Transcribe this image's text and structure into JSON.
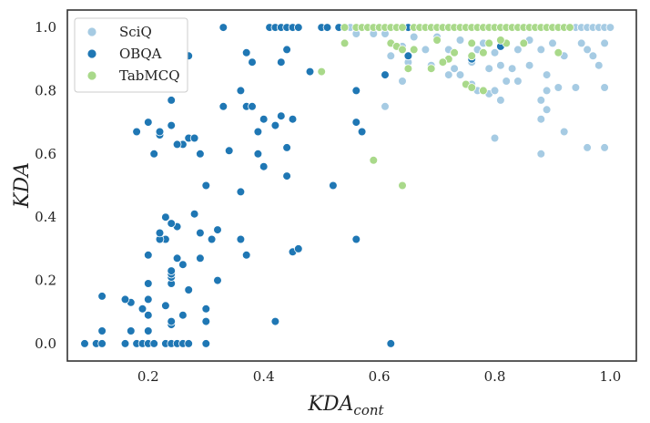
{
  "chart_data": {
    "type": "scatter",
    "xlabel_main": "KDA",
    "xlabel_sub": "cont",
    "ylabel": "KDA",
    "xlim": [
      0.06,
      1.045
    ],
    "ylim": [
      -0.055,
      1.055
    ],
    "xticks": [
      "0.2",
      "0.4",
      "0.6",
      "0.8",
      "1.0"
    ],
    "xtick_values": [
      0.2,
      0.4,
      0.6,
      0.8,
      1.0
    ],
    "yticks": [
      "0.0",
      "0.2",
      "0.4",
      "0.6",
      "0.8",
      "1.0"
    ],
    "ytick_values": [
      0.0,
      0.2,
      0.4,
      0.6,
      0.8,
      1.0
    ],
    "grid": false,
    "legend_position": "top-left",
    "series": [
      {
        "name": "SciQ",
        "color": "#a6cbe3",
        "points": [
          [
            0.53,
            1.0
          ],
          [
            0.55,
            1.0
          ],
          [
            0.57,
            1.0
          ],
          [
            0.58,
            1.0
          ],
          [
            0.6,
            1.0
          ],
          [
            0.62,
            1.0
          ],
          [
            0.64,
            1.0
          ],
          [
            0.65,
            1.0
          ],
          [
            0.67,
            1.0
          ],
          [
            0.69,
            1.0
          ],
          [
            0.71,
            1.0
          ],
          [
            0.73,
            1.0
          ],
          [
            0.75,
            1.0
          ],
          [
            0.77,
            1.0
          ],
          [
            0.79,
            1.0
          ],
          [
            0.81,
            1.0
          ],
          [
            0.83,
            1.0
          ],
          [
            0.85,
            1.0
          ],
          [
            0.87,
            1.0
          ],
          [
            0.89,
            1.0
          ],
          [
            0.91,
            1.0
          ],
          [
            0.93,
            1.0
          ],
          [
            0.94,
            1.0
          ],
          [
            0.95,
            1.0
          ],
          [
            0.96,
            1.0
          ],
          [
            0.97,
            1.0
          ],
          [
            0.98,
            1.0
          ],
          [
            0.99,
            1.0
          ],
          [
            1.0,
            1.0
          ],
          [
            0.56,
            0.98
          ],
          [
            0.59,
            0.98
          ],
          [
            0.61,
            0.98
          ],
          [
            0.66,
            0.97
          ],
          [
            0.7,
            0.97
          ],
          [
            0.74,
            0.96
          ],
          [
            0.78,
            0.95
          ],
          [
            0.82,
            0.95
          ],
          [
            0.86,
            0.96
          ],
          [
            0.9,
            0.95
          ],
          [
            0.95,
            0.95
          ],
          [
            0.99,
            0.95
          ],
          [
            0.64,
            0.94
          ],
          [
            0.68,
            0.93
          ],
          [
            0.72,
            0.93
          ],
          [
            0.77,
            0.93
          ],
          [
            0.8,
            0.92
          ],
          [
            0.84,
            0.93
          ],
          [
            0.88,
            0.93
          ],
          [
            0.92,
            0.91
          ],
          [
            0.96,
            0.93
          ],
          [
            0.62,
            0.91
          ],
          [
            0.65,
            0.89
          ],
          [
            0.69,
            0.88
          ],
          [
            0.73,
            0.87
          ],
          [
            0.76,
            0.89
          ],
          [
            0.79,
            0.87
          ],
          [
            0.81,
            0.88
          ],
          [
            0.83,
            0.87
          ],
          [
            0.86,
            0.88
          ],
          [
            0.89,
            0.85
          ],
          [
            0.64,
            0.83
          ],
          [
            0.72,
            0.85
          ],
          [
            0.74,
            0.85
          ],
          [
            0.76,
            0.82
          ],
          [
            0.77,
            0.8
          ],
          [
            0.78,
            0.8
          ],
          [
            0.79,
            0.79
          ],
          [
            0.8,
            0.8
          ],
          [
            0.82,
            0.83
          ],
          [
            0.84,
            0.83
          ],
          [
            0.88,
            0.77
          ],
          [
            0.89,
            0.8
          ],
          [
            0.91,
            0.81
          ],
          [
            0.94,
            0.81
          ],
          [
            0.61,
            0.75
          ],
          [
            0.81,
            0.77
          ],
          [
            0.88,
            0.71
          ],
          [
            0.89,
            0.74
          ],
          [
            0.92,
            0.67
          ],
          [
            0.8,
            0.65
          ],
          [
            0.88,
            0.6
          ],
          [
            0.96,
            0.62
          ],
          [
            0.99,
            0.62
          ],
          [
            0.98,
            0.88
          ],
          [
            0.99,
            0.81
          ],
          [
            0.97,
            0.91
          ]
        ]
      },
      {
        "name": "OBQA",
        "color": "#1f77b4",
        "points": [
          [
            0.09,
            0.0
          ],
          [
            0.11,
            0.0
          ],
          [
            0.12,
            0.0
          ],
          [
            0.16,
            0.0
          ],
          [
            0.18,
            0.0
          ],
          [
            0.19,
            0.0
          ],
          [
            0.2,
            0.0
          ],
          [
            0.21,
            0.0
          ],
          [
            0.23,
            0.0
          ],
          [
            0.24,
            0.0
          ],
          [
            0.25,
            0.0
          ],
          [
            0.26,
            0.0
          ],
          [
            0.27,
            0.0
          ],
          [
            0.3,
            0.0
          ],
          [
            0.62,
            0.0
          ],
          [
            0.12,
            0.04
          ],
          [
            0.17,
            0.04
          ],
          [
            0.2,
            0.04
          ],
          [
            0.24,
            0.06
          ],
          [
            0.24,
            0.07
          ],
          [
            0.3,
            0.07
          ],
          [
            0.42,
            0.07
          ],
          [
            0.2,
            0.09
          ],
          [
            0.26,
            0.09
          ],
          [
            0.19,
            0.11
          ],
          [
            0.23,
            0.12
          ],
          [
            0.17,
            0.13
          ],
          [
            0.12,
            0.15
          ],
          [
            0.16,
            0.14
          ],
          [
            0.2,
            0.14
          ],
          [
            0.3,
            0.11
          ],
          [
            0.27,
            0.17
          ],
          [
            0.24,
            0.19
          ],
          [
            0.2,
            0.19
          ],
          [
            0.32,
            0.2
          ],
          [
            0.24,
            0.21
          ],
          [
            0.24,
            0.22
          ],
          [
            0.24,
            0.23
          ],
          [
            0.26,
            0.25
          ],
          [
            0.25,
            0.27
          ],
          [
            0.29,
            0.27
          ],
          [
            0.2,
            0.28
          ],
          [
            0.37,
            0.28
          ],
          [
            0.45,
            0.29
          ],
          [
            0.46,
            0.3
          ],
          [
            0.23,
            0.33
          ],
          [
            0.22,
            0.33
          ],
          [
            0.31,
            0.33
          ],
          [
            0.36,
            0.33
          ],
          [
            0.56,
            0.33
          ],
          [
            0.29,
            0.35
          ],
          [
            0.22,
            0.35
          ],
          [
            0.25,
            0.37
          ],
          [
            0.24,
            0.38
          ],
          [
            0.32,
            0.36
          ],
          [
            0.23,
            0.4
          ],
          [
            0.28,
            0.41
          ],
          [
            0.36,
            0.48
          ],
          [
            0.3,
            0.5
          ],
          [
            0.52,
            0.5
          ],
          [
            0.29,
            0.6
          ],
          [
            0.21,
            0.6
          ],
          [
            0.26,
            0.63
          ],
          [
            0.25,
            0.63
          ],
          [
            0.27,
            0.65
          ],
          [
            0.28,
            0.65
          ],
          [
            0.22,
            0.66
          ],
          [
            0.22,
            0.67
          ],
          [
            0.18,
            0.67
          ],
          [
            0.34,
            0.61
          ],
          [
            0.39,
            0.6
          ],
          [
            0.4,
            0.56
          ],
          [
            0.44,
            0.53
          ],
          [
            0.44,
            0.62
          ],
          [
            0.2,
            0.7
          ],
          [
            0.24,
            0.69
          ],
          [
            0.39,
            0.67
          ],
          [
            0.42,
            0.69
          ],
          [
            0.4,
            0.71
          ],
          [
            0.45,
            0.71
          ],
          [
            0.43,
            0.72
          ],
          [
            0.37,
            0.75
          ],
          [
            0.33,
            0.75
          ],
          [
            0.38,
            0.75
          ],
          [
            0.56,
            0.7
          ],
          [
            0.57,
            0.67
          ],
          [
            0.24,
            0.77
          ],
          [
            0.36,
            0.8
          ],
          [
            0.26,
            0.83
          ],
          [
            0.48,
            0.86
          ],
          [
            0.38,
            0.89
          ],
          [
            0.37,
            0.92
          ],
          [
            0.43,
            0.89
          ],
          [
            0.44,
            0.93
          ],
          [
            0.27,
            0.91
          ],
          [
            0.56,
            0.8
          ],
          [
            0.61,
            0.85
          ],
          [
            0.65,
            0.91
          ],
          [
            0.76,
            0.9
          ],
          [
            0.81,
            0.94
          ],
          [
            0.23,
            1.0
          ],
          [
            0.25,
            1.0
          ],
          [
            0.26,
            1.0
          ],
          [
            0.33,
            1.0
          ],
          [
            0.41,
            1.0
          ],
          [
            0.42,
            1.0
          ],
          [
            0.43,
            1.0
          ],
          [
            0.44,
            1.0
          ],
          [
            0.45,
            1.0
          ],
          [
            0.46,
            1.0
          ],
          [
            0.5,
            1.0
          ],
          [
            0.51,
            1.0
          ],
          [
            0.53,
            1.0
          ],
          [
            0.58,
            1.0
          ],
          [
            0.65,
            1.0
          ]
        ]
      },
      {
        "name": "TabMCQ",
        "color": "#a9d98a",
        "points": [
          [
            0.54,
            1.0
          ],
          [
            0.56,
            1.0
          ],
          [
            0.57,
            1.0
          ],
          [
            0.58,
            1.0
          ],
          [
            0.59,
            1.0
          ],
          [
            0.6,
            1.0
          ],
          [
            0.61,
            1.0
          ],
          [
            0.62,
            1.0
          ],
          [
            0.63,
            1.0
          ],
          [
            0.64,
            1.0
          ],
          [
            0.66,
            1.0
          ],
          [
            0.67,
            1.0
          ],
          [
            0.68,
            1.0
          ],
          [
            0.69,
            1.0
          ],
          [
            0.7,
            1.0
          ],
          [
            0.71,
            1.0
          ],
          [
            0.72,
            1.0
          ],
          [
            0.73,
            1.0
          ],
          [
            0.74,
            1.0
          ],
          [
            0.75,
            1.0
          ],
          [
            0.76,
            1.0
          ],
          [
            0.77,
            1.0
          ],
          [
            0.78,
            1.0
          ],
          [
            0.79,
            1.0
          ],
          [
            0.8,
            1.0
          ],
          [
            0.81,
            1.0
          ],
          [
            0.82,
            1.0
          ],
          [
            0.83,
            1.0
          ],
          [
            0.84,
            1.0
          ],
          [
            0.85,
            1.0
          ],
          [
            0.86,
            1.0
          ],
          [
            0.87,
            1.0
          ],
          [
            0.88,
            1.0
          ],
          [
            0.89,
            1.0
          ],
          [
            0.9,
            1.0
          ],
          [
            0.91,
            1.0
          ],
          [
            0.92,
            1.0
          ],
          [
            0.93,
            1.0
          ],
          [
            0.54,
            0.95
          ],
          [
            0.62,
            0.95
          ],
          [
            0.63,
            0.94
          ],
          [
            0.7,
            0.96
          ],
          [
            0.76,
            0.95
          ],
          [
            0.79,
            0.95
          ],
          [
            0.82,
            0.95
          ],
          [
            0.85,
            0.95
          ],
          [
            0.91,
            0.92
          ],
          [
            0.64,
            0.93
          ],
          [
            0.66,
            0.93
          ],
          [
            0.72,
            0.9
          ],
          [
            0.73,
            0.92
          ],
          [
            0.76,
            0.91
          ],
          [
            0.78,
            0.92
          ],
          [
            0.81,
            0.96
          ],
          [
            0.65,
            0.87
          ],
          [
            0.69,
            0.87
          ],
          [
            0.71,
            0.89
          ],
          [
            0.75,
            0.82
          ],
          [
            0.76,
            0.81
          ],
          [
            0.78,
            0.8
          ],
          [
            0.5,
            0.86
          ],
          [
            0.59,
            0.58
          ],
          [
            0.64,
            0.5
          ]
        ]
      }
    ]
  }
}
